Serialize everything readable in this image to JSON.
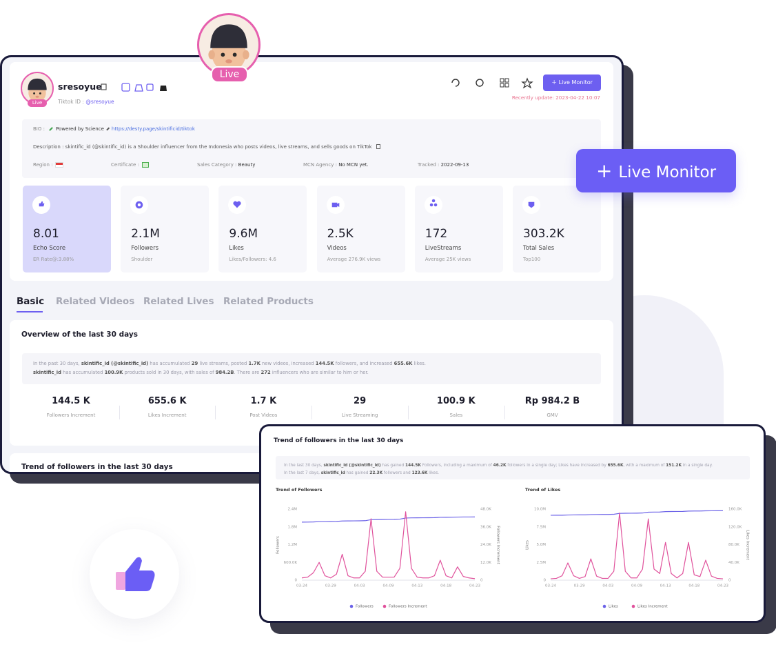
{
  "avatar_badge": "Live",
  "floating_button": "Live Monitor",
  "profile_card": {
    "avatar_badge": "Live",
    "name": "sresoyue",
    "id_label": "Tiktok ID :",
    "id_value": "@sresoyue",
    "live_monitor_button": "Live Monitor",
    "recent_update": "Recently update: 2023-04-22 10:07",
    "bio": {
      "label": "BIO :",
      "text": "Powered by Science",
      "link": "https://desty.page/skintificid/tiktok"
    },
    "description": "Description : skintific_id (@skintific_id) is a Shoulder influencer from the Indonesia who posts videos, live streams, and sells goods on TikTok",
    "fields": [
      {
        "label": "Region :"
      },
      {
        "label": "Certificate :"
      },
      {
        "label": "Sales Category :",
        "value": "Beauty"
      },
      {
        "label": "MCN Agency :",
        "value": "No MCN yet."
      },
      {
        "label": "Tracked :",
        "value": "2022-09-13"
      }
    ],
    "stats": [
      {
        "value": "8.01",
        "label": "Echo Score",
        "note": "ER Rate@:3.88%"
      },
      {
        "value": "2.1M",
        "label": "Followers",
        "note": "Shoulder"
      },
      {
        "value": "9.6M",
        "label": "Likes",
        "note": "Likes/Followers: 4.6"
      },
      {
        "value": "2.5K",
        "label": "Videos",
        "note": "Average 276.9K views"
      },
      {
        "value": "172",
        "label": "LiveStreams",
        "note": "Average 25K views"
      },
      {
        "value": "303.2K",
        "label": "Total Sales",
        "note": "Top100"
      }
    ],
    "tabs": [
      "Basic",
      "Related Videos",
      "Related Lives",
      "Related Products"
    ],
    "overview": {
      "title": "Overview of the last 30 days",
      "summary": [
        [
          {
            "text": "In the past 30 days, "
          },
          {
            "text": "skintific_id (@skintific_id)",
            "bold": true
          },
          {
            "text": " has accumulated "
          },
          {
            "text": "29",
            "bold": true
          },
          {
            "text": " live streams, posted "
          },
          {
            "text": "1.7K",
            "bold": true
          },
          {
            "text": " new videos, increased "
          },
          {
            "text": "144.5K",
            "bold": true
          },
          {
            "text": " followers, and increased "
          },
          {
            "text": "655.6K",
            "bold": true
          },
          {
            "text": " likes."
          }
        ],
        [
          {
            "text": "skintific_id",
            "bold": true
          },
          {
            "text": " has accumulated "
          },
          {
            "text": "100.9K",
            "bold": true
          },
          {
            "text": " products sold in 30 days, with sales of "
          },
          {
            "text": "984.2B",
            "bold": true
          },
          {
            "text": ". There are "
          },
          {
            "text": "272",
            "bold": true
          },
          {
            "text": " influencers who are similar to him or her."
          }
        ]
      ],
      "metrics": [
        {
          "value": "144.5 K",
          "label": "Followers Increment"
        },
        {
          "value": "655.6 K",
          "label": "Likes Increment"
        },
        {
          "value": "1.7 K",
          "label": "Post Videos"
        },
        {
          "value": "29",
          "label": "Live Streaming"
        },
        {
          "value": "100.9 K",
          "label": "Sales"
        },
        {
          "value": "Rp 984.2 B",
          "label": "GMV"
        }
      ]
    },
    "next_section_title": "Trend of followers in the last 30 days"
  },
  "trend_card": {
    "title": "Trend of followers in the last 30 days",
    "summary": [
      [
        {
          "text": "In the last 30 days, "
        },
        {
          "text": "skintific_id (@skintific_id)",
          "bold": true
        },
        {
          "text": " has gained "
        },
        {
          "text": "144.5K",
          "bold": true
        },
        {
          "text": " Followers, including a maximum of "
        },
        {
          "text": "46.2K",
          "bold": true
        },
        {
          "text": " followers in a single day; Likes have increased by "
        },
        {
          "text": "655.6K",
          "bold": true
        },
        {
          "text": ", with a maximum of "
        },
        {
          "text": "151.2K",
          "bold": true
        },
        {
          "text": " in a single day."
        }
      ],
      [
        {
          "text": "In the last 7 days, "
        },
        {
          "text": "skintific_id",
          "bold": true
        },
        {
          "text": " has gained "
        },
        {
          "text": "22.3K",
          "bold": true
        },
        {
          "text": " followers and "
        },
        {
          "text": "123.6K",
          "bold": true
        },
        {
          "text": " likes."
        }
      ]
    ],
    "charts": [
      {
        "type": "line",
        "title": "Trend of Followers",
        "ylabel": "Followers",
        "y2label": "Followers Increment",
        "grid": false,
        "categories": [
          "03-24",
          null,
          null,
          null,
          null,
          "03-29",
          null,
          null,
          null,
          null,
          "04-03",
          null,
          null,
          null,
          null,
          "04-09",
          null,
          null,
          null,
          null,
          "04-13",
          null,
          null,
          null,
          null,
          "04-18",
          null,
          null,
          null,
          null,
          "04-23"
        ],
        "ylim": [
          0,
          2400000
        ],
        "yticks": [
          0,
          {
            "value": 600000,
            "label": "600.0K"
          },
          {
            "value": 1200000,
            "label": "1.2M"
          },
          {
            "value": 1800000,
            "label": "1.8M"
          },
          {
            "value": 2400000,
            "label": "2.4M"
          }
        ],
        "y2lim": [
          0,
          48000
        ],
        "y2ticks": [
          0,
          {
            "value": 12000,
            "label": "12.0K"
          },
          {
            "value": 24000,
            "label": "24.0K"
          },
          {
            "value": 36000,
            "label": "36.0K"
          },
          {
            "value": 48000,
            "label": "48.0K"
          }
        ],
        "series": [
          {
            "name": "Followers",
            "color": "#6c63e8",
            "values": [
              1960000,
              1962000,
              1966000,
              1976000,
              1979000,
              1981000,
              1984000,
              1998000,
              2001000,
              2002000,
              2004000,
              2009000,
              2043000,
              2048000,
              2050000,
              2052000,
              2054000,
              2061000,
              2098000,
              2104000,
              2106000,
              2107000,
              2108000,
              2111000,
              2122000,
              2124000,
              2125000,
              2131000,
              2133000,
              2134000,
              2135000
            ]
          },
          {
            "name": "Followers Increment",
            "color": "#e0529c",
            "axis": "y2",
            "values": [
              1500,
              2000,
              5000,
              12000,
              3000,
              1500,
              4000,
              17500,
              3000,
              1500,
              1500,
              6000,
              41500,
              6000,
              2000,
              2000,
              2000,
              8000,
              46200,
              8000,
              2000,
              1500,
              1500,
              3000,
              13500,
              3000,
              1500,
              9000,
              2500,
              1500,
              1000
            ]
          }
        ]
      },
      {
        "type": "line",
        "title": "Trend of Likes",
        "ylabel": "Likes",
        "y2label": "Likes Increment",
        "grid": false,
        "categories": [
          "03-24",
          null,
          null,
          null,
          null,
          "03-29",
          null,
          null,
          null,
          null,
          "04-03",
          null,
          null,
          null,
          null,
          "04-09",
          null,
          null,
          null,
          null,
          "04-13",
          null,
          null,
          null,
          null,
          "04-18",
          null,
          null,
          null,
          null,
          "04-23"
        ],
        "ylim": [
          0,
          10000000
        ],
        "yticks": [
          0,
          {
            "value": 2500000,
            "label": "2.5M"
          },
          {
            "value": 5000000,
            "label": "5.0M"
          },
          {
            "value": 7500000,
            "label": "7.5M"
          },
          {
            "value": 10000000,
            "label": "10.0M"
          }
        ],
        "y2lim": [
          0,
          160000
        ],
        "y2ticks": [
          0,
          {
            "value": 40000,
            "label": "40.0K"
          },
          {
            "value": 80000,
            "label": "80.0K"
          },
          {
            "value": 120000,
            "label": "120.0K"
          },
          {
            "value": 160000,
            "label": "160.0K"
          }
        ],
        "series": [
          {
            "name": "Likes",
            "color": "#6c63e8",
            "values": [
              9130000,
              9135000,
              9140000,
              9170000,
              9180000,
              9185000,
              9190000,
              9230000,
              9240000,
              9245000,
              9250000,
              9270000,
              9400000,
              9420000,
              9425000,
              9430000,
              9450000,
              9560000,
              9580000,
              9590000,
              9650000,
              9660000,
              9665000,
              9675000,
              9720000,
              9730000,
              9735000,
              9760000,
              9765000,
              9768000,
              9770000
            ]
          },
          {
            "name": "Likes Increment",
            "color": "#e0529c",
            "axis": "y2",
            "values": [
              3000,
              4000,
              10000,
              38800,
              10000,
              4000,
              8000,
              48000,
              9000,
              4000,
              4000,
              20000,
              151200,
              20000,
              5000,
              5000,
              25000,
              138000,
              25000,
              15000,
              85000,
              15000,
              5000,
              15000,
              85000,
              12000,
              8000,
              45000,
              9000,
              4000,
              3000
            ]
          }
        ]
      }
    ]
  }
}
